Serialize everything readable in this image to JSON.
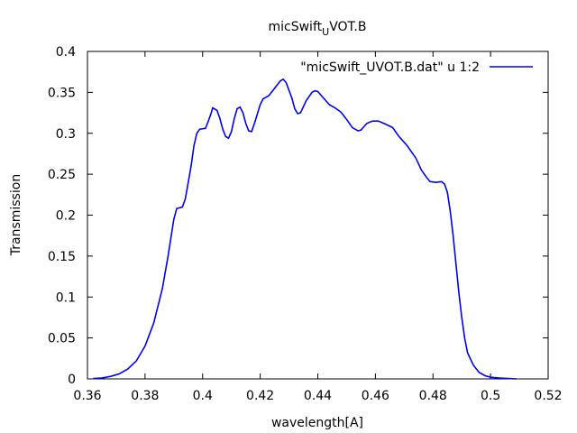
{
  "chart_data": {
    "type": "line",
    "title": [
      "micSwift",
      "U",
      "VOT.B"
    ],
    "x_label": "wavelength[A]",
    "y_label": "Transmission",
    "xlim": [
      0.36,
      0.52
    ],
    "xticks": [
      0.36,
      0.38,
      0.4,
      0.42,
      0.44,
      0.46,
      0.48,
      0.5,
      0.52
    ],
    "ylim": [
      0,
      0.4
    ],
    "yticks": [
      0,
      0.05,
      0.1,
      0.15,
      0.2,
      0.25,
      0.3,
      0.35,
      0.4
    ],
    "legend": "top-right",
    "series": [
      {
        "name": "\"micSwift_UVOT.B.dat\" u 1:2",
        "color": "#0000ee",
        "x": [
          0.362,
          0.365,
          0.368,
          0.371,
          0.374,
          0.377,
          0.38,
          0.383,
          0.386,
          0.388,
          0.39,
          0.391,
          0.393,
          0.394,
          0.396,
          0.397,
          0.398,
          0.399,
          0.401,
          0.402,
          0.403,
          0.4035,
          0.405,
          0.406,
          0.407,
          0.408,
          0.409,
          0.41,
          0.411,
          0.412,
          0.413,
          0.414,
          0.415,
          0.416,
          0.417,
          0.418,
          0.42,
          0.421,
          0.423,
          0.425,
          0.427,
          0.428,
          0.429,
          0.431,
          0.432,
          0.433,
          0.434,
          0.436,
          0.438,
          0.439,
          0.44,
          0.442,
          0.444,
          0.446,
          0.448,
          0.45,
          0.452,
          0.454,
          0.455,
          0.457,
          0.459,
          0.461,
          0.463,
          0.466,
          0.468,
          0.471,
          0.474,
          0.476,
          0.478,
          0.479,
          0.481,
          0.483,
          0.484,
          0.485,
          0.486,
          0.487,
          0.488,
          0.489,
          0.49,
          0.491,
          0.492,
          0.494,
          0.496,
          0.498,
          0.5,
          0.503,
          0.509
        ],
        "values": [
          0.0005,
          0.001,
          0.003,
          0.006,
          0.012,
          0.022,
          0.04,
          0.068,
          0.11,
          0.15,
          0.195,
          0.208,
          0.21,
          0.22,
          0.26,
          0.285,
          0.3,
          0.305,
          0.306,
          0.315,
          0.325,
          0.331,
          0.328,
          0.318,
          0.305,
          0.296,
          0.294,
          0.302,
          0.318,
          0.33,
          0.332,
          0.325,
          0.312,
          0.303,
          0.302,
          0.312,
          0.335,
          0.342,
          0.346,
          0.355,
          0.364,
          0.366,
          0.362,
          0.343,
          0.33,
          0.324,
          0.325,
          0.34,
          0.35,
          0.352,
          0.351,
          0.343,
          0.335,
          0.331,
          0.326,
          0.317,
          0.307,
          0.303,
          0.304,
          0.312,
          0.315,
          0.315,
          0.312,
          0.307,
          0.297,
          0.285,
          0.27,
          0.255,
          0.245,
          0.241,
          0.24,
          0.241,
          0.238,
          0.228,
          0.205,
          0.175,
          0.14,
          0.105,
          0.075,
          0.05,
          0.032,
          0.017,
          0.008,
          0.004,
          0.002,
          0.001,
          0
        ]
      }
    ]
  }
}
